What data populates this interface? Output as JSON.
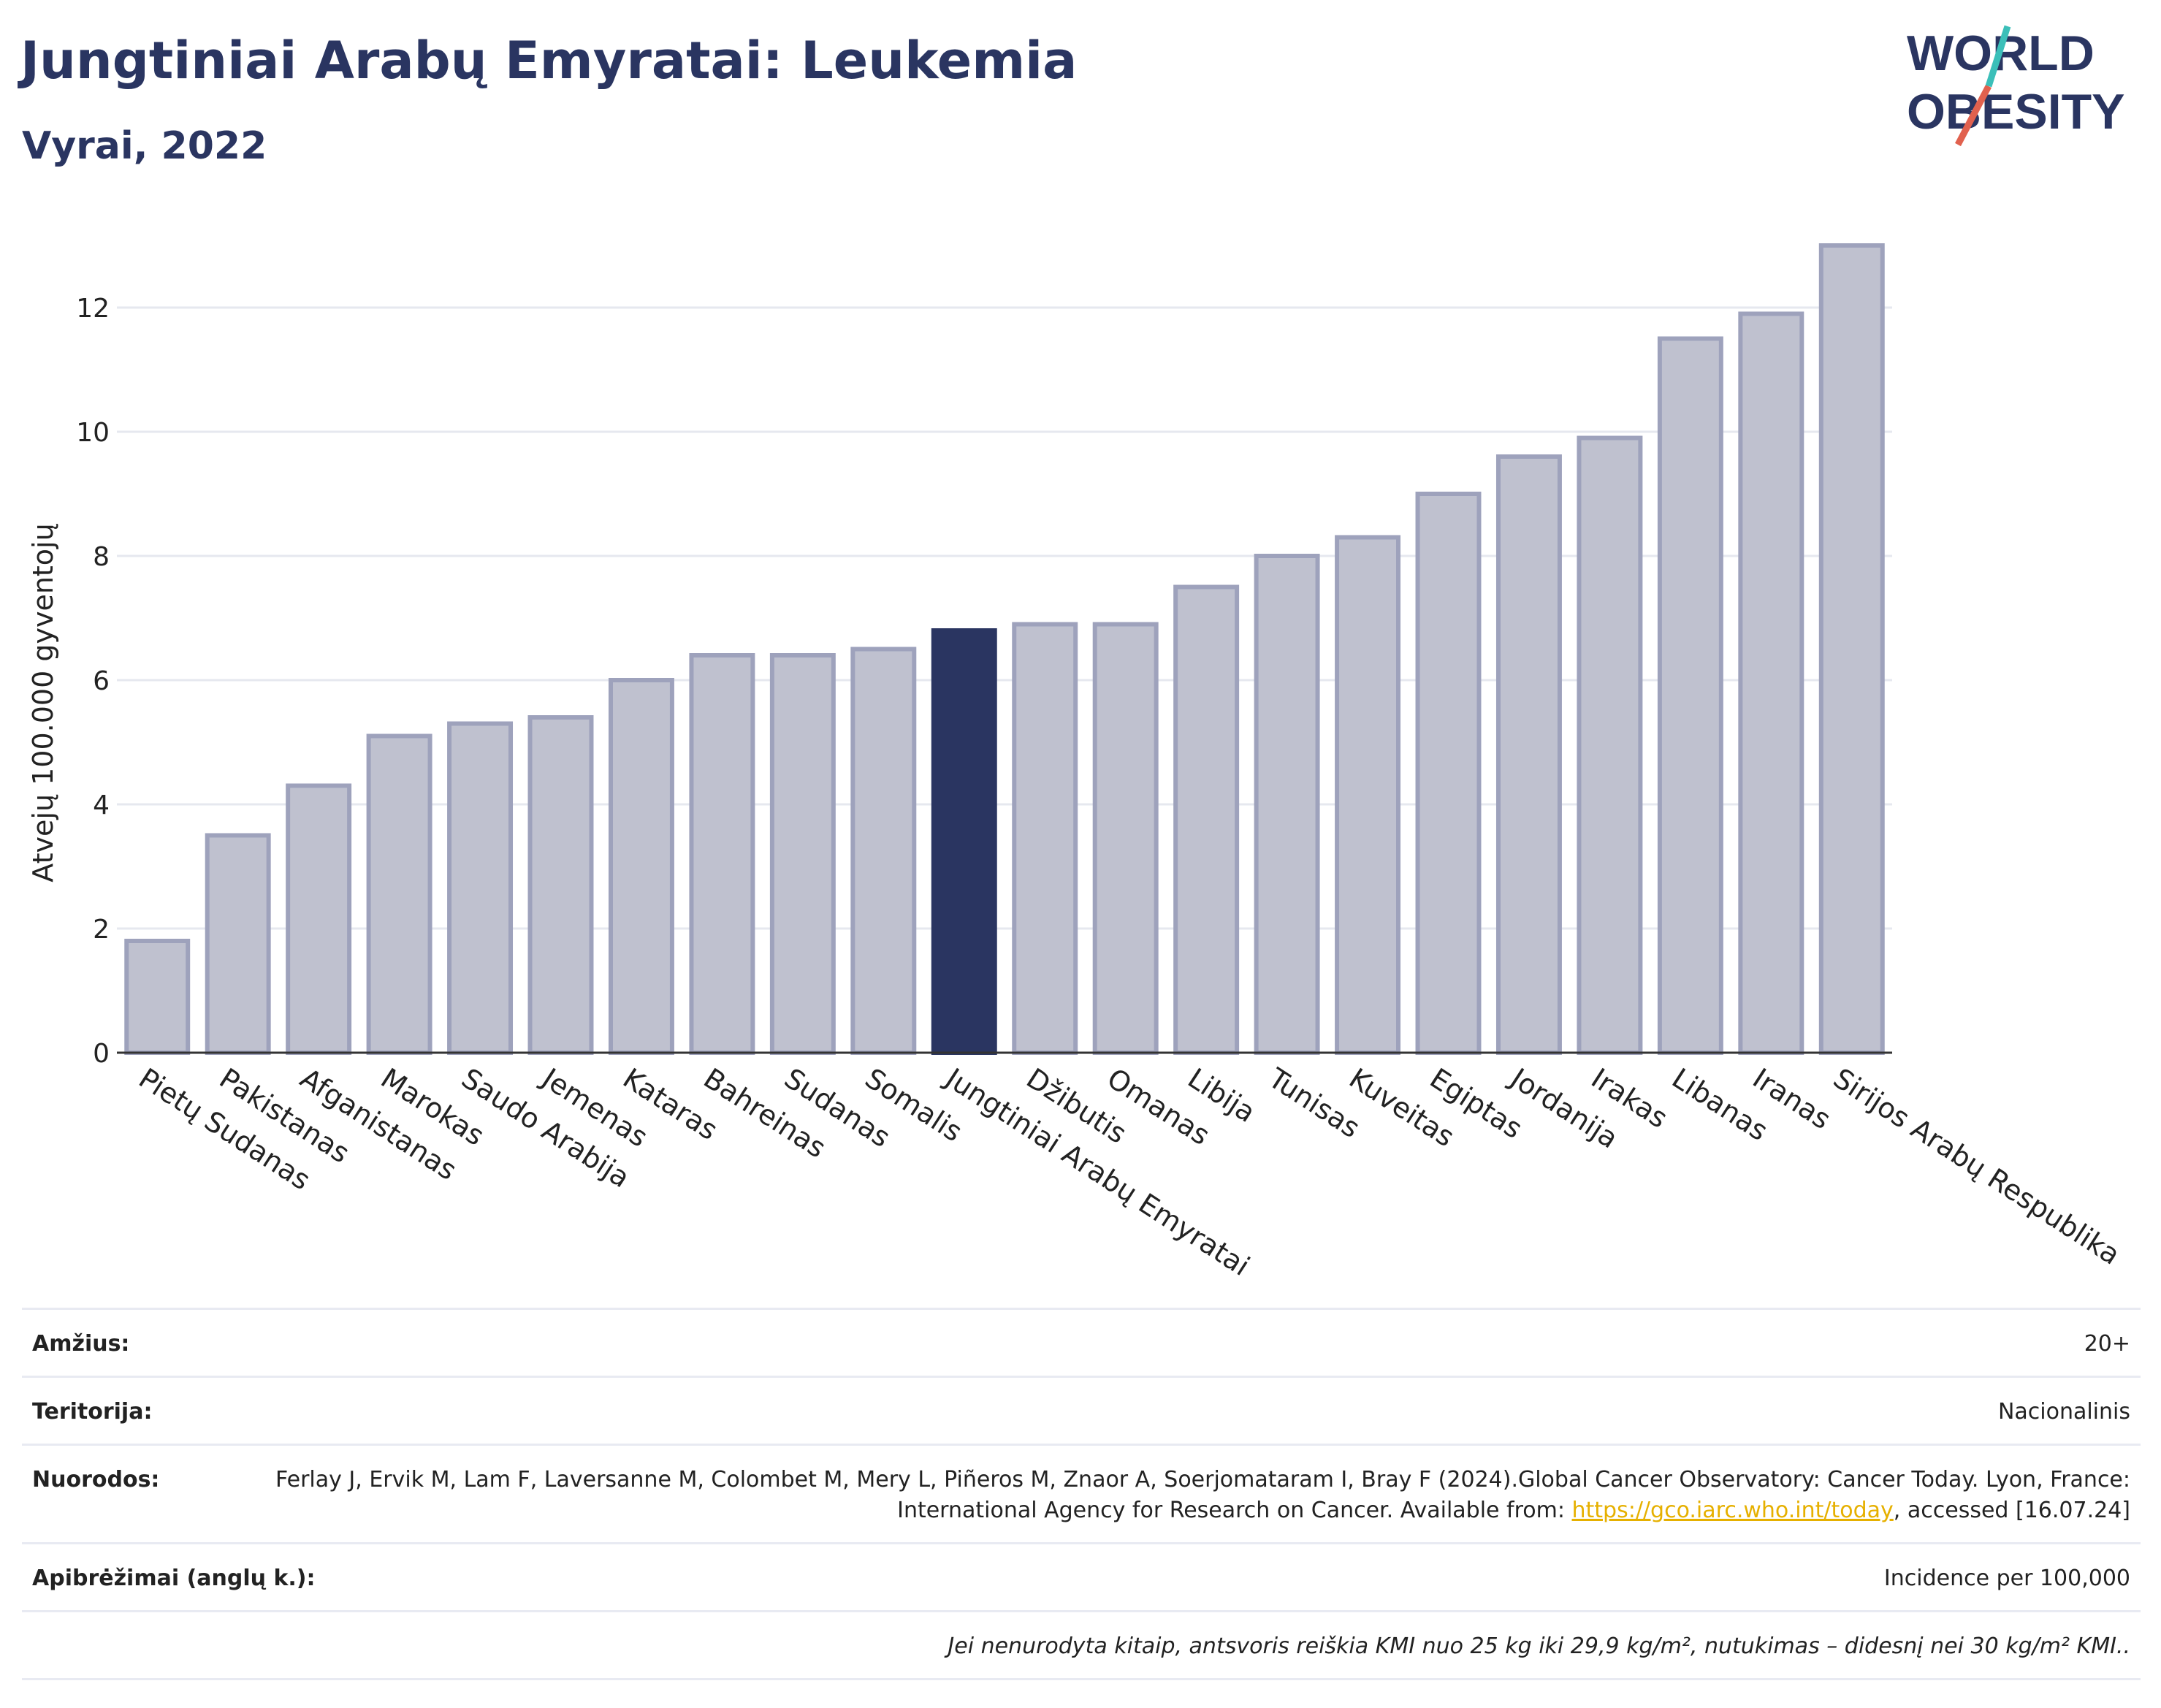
{
  "title": "Jungtiniai Arabų Emyratai: Leukemia",
  "subtitle": "Vyrai, 2022",
  "logo": {
    "line1": "WORLD",
    "line2": "OBESITY"
  },
  "colors": {
    "highlight": "#2a3561",
    "bar_fill": "#bfc1cf",
    "bar_stroke": "#9ea2bc",
    "title": "#2a3561",
    "logo_teal": "#3bbfb9",
    "logo_red": "#e1614e",
    "link": "#e6b000"
  },
  "chart_data": {
    "type": "bar",
    "ylabel": "Atvejų 100.000 gyventojų",
    "ylim": [
      0,
      13.5
    ],
    "yticks": [
      0,
      2,
      4,
      6,
      8,
      10,
      12
    ],
    "grid": true,
    "categories": [
      "Pietų Sudanas",
      "Pakistanas",
      "Afganistanas",
      "Marokas",
      "Saudo Arabija",
      "Jemenas",
      "Kataras",
      "Bahreinas",
      "Sudanas",
      "Somalis",
      "Jungtiniai Arabų Emyratai",
      "Džibutis",
      "Omanas",
      "Libija",
      "Tunisas",
      "Kuveitas",
      "Egiptas",
      "Jordanija",
      "Irakas",
      "Libanas",
      "Iranas",
      "Sirijos Arabų Respublika"
    ],
    "values": [
      1.8,
      3.5,
      4.3,
      5.1,
      5.3,
      5.4,
      6.0,
      6.4,
      6.4,
      6.5,
      6.8,
      6.9,
      6.9,
      7.5,
      8.0,
      8.3,
      9.0,
      9.6,
      9.9,
      11.5,
      11.9,
      13.0
    ],
    "highlight": "Jungtiniai Arabų Emyratai"
  },
  "meta": {
    "age_label": "Amžius:",
    "age_value": "20+",
    "territory_label": "Teritorija:",
    "territory_value": "Nacionalinis",
    "refs_label": "Nuorodos:",
    "refs_text1": "Ferlay J, Ervik M, Lam F, Laversanne M, Colombet M, Mery L, Piñeros M, Znaor A, Soerjomataram I, Bray F (2024).Global Cancer Observatory: Cancer Today. Lyon, France: International Agency for Research on Cancer. Available from: ",
    "refs_link": "https://gco.iarc.who.int/today",
    "refs_text2": ", accessed [16.07.24]",
    "defs_label": "Apibrėžimai (anglų k.):",
    "defs_value": "Incidence per 100,000",
    "note": "Jei nenurodyta kitaip, antsvoris reiškia KMI nuo 25 kg iki 29,9 kg/m², nutukimas – didesnį nei 30 kg/m² KMI.."
  }
}
